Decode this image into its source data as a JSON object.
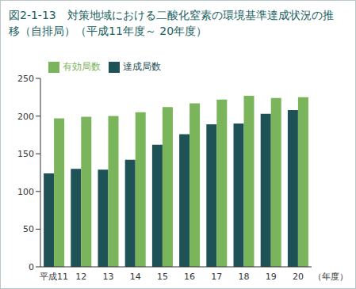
{
  "chart_data": {
    "type": "bar",
    "title": "図2-1-13　対策地域における二酸化窒素の環境基準達成状況の推移（自排局）（平成11年度～ 20年度）",
    "x_label": "（年度）",
    "categories": [
      "平成11",
      "12",
      "13",
      "14",
      "15",
      "16",
      "17",
      "18",
      "19",
      "20"
    ],
    "series": [
      {
        "name": "達成局数",
        "color": "#1f5257",
        "values": [
          124,
          130,
          129,
          142,
          162,
          176,
          189,
          190,
          203,
          208
        ]
      },
      {
        "name": "有効局数",
        "color": "#7ab55c",
        "values": [
          197,
          199,
          200,
          205,
          212,
          217,
          222,
          227,
          224,
          225
        ]
      }
    ],
    "ylim": [
      0,
      250
    ],
    "yticks": [
      0,
      50,
      100,
      150,
      200,
      250
    ],
    "legend": "top"
  }
}
